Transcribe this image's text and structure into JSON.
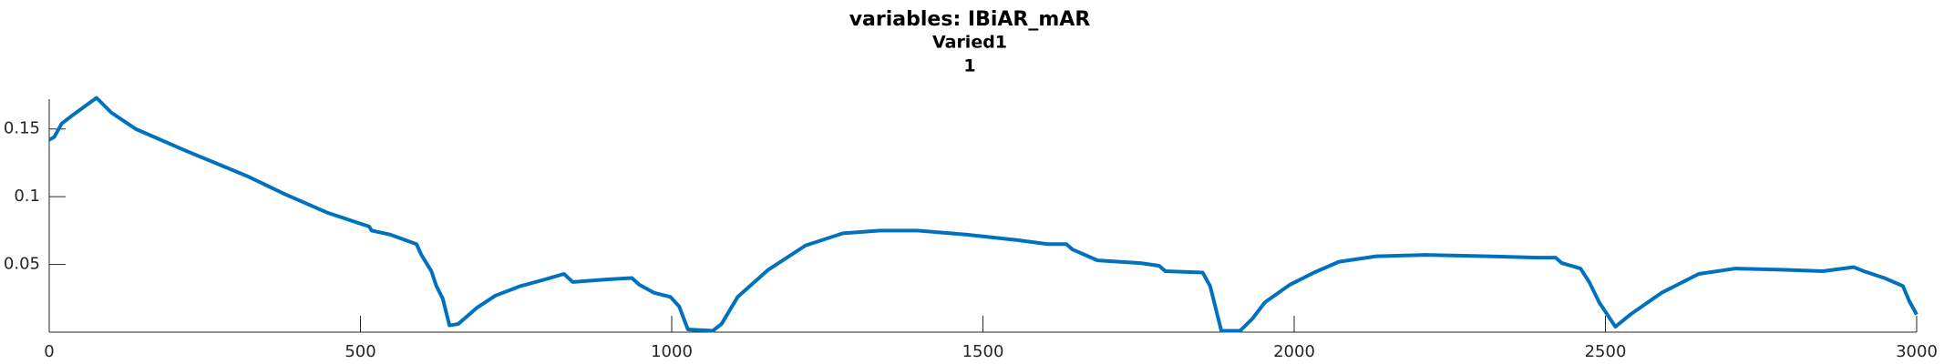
{
  "chart_data": {
    "type": "line",
    "title": "variables: IBiAR_mAR",
    "subtitle": [
      "Varied1",
      "1"
    ],
    "x": [
      0,
      8,
      20,
      40,
      76,
      100,
      139,
      219,
      319,
      378,
      448,
      514,
      518,
      548,
      590,
      598,
      614,
      622,
      632,
      643,
      657,
      687,
      717,
      757,
      797,
      827,
      841,
      897,
      936,
      948,
      972,
      998,
      1012,
      1026,
      1066,
      1080,
      1106,
      1155,
      1215,
      1275,
      1335,
      1395,
      1474,
      1554,
      1604,
      1634,
      1644,
      1684,
      1753,
      1783,
      1793,
      1853,
      1865,
      1883,
      1913,
      1933,
      1953,
      1993,
      2032,
      2072,
      2132,
      2211,
      2311,
      2391,
      2420,
      2430,
      2460,
      2474,
      2490,
      2516,
      2540,
      2590,
      2650,
      2709,
      2789,
      2849,
      2899,
      2915,
      2948,
      2978,
      2988,
      3000
    ],
    "series": [
      {
        "color": "#0072bd",
        "values": [
          0.142,
          0.144,
          0.154,
          0.161,
          0.173,
          0.162,
          0.15,
          0.134,
          0.115,
          0.102,
          0.088,
          0.078,
          0.075,
          0.072,
          0.065,
          0.057,
          0.045,
          0.034,
          0.025,
          0.005,
          0.006,
          0.018,
          0.027,
          0.034,
          0.039,
          0.043,
          0.037,
          0.039,
          0.04,
          0.035,
          0.029,
          0.026,
          0.019,
          0.002,
          0.001,
          0.006,
          0.026,
          0.046,
          0.064,
          0.073,
          0.075,
          0.075,
          0.072,
          0.068,
          0.065,
          0.065,
          0.061,
          0.053,
          0.051,
          0.049,
          0.045,
          0.044,
          0.034,
          0.001,
          0.001,
          0.01,
          0.022,
          0.035,
          0.044,
          0.052,
          0.056,
          0.057,
          0.056,
          0.055,
          0.055,
          0.051,
          0.047,
          0.037,
          0.022,
          0.004,
          0.013,
          0.029,
          0.043,
          0.047,
          0.046,
          0.045,
          0.048,
          0.045,
          0.04,
          0.034,
          0.023,
          0.013
        ]
      }
    ],
    "xlim": [
      0,
      3000
    ],
    "xticks": [
      0,
      500,
      1000,
      1500,
      2000,
      2500,
      3000
    ],
    "ylim": [
      0,
      0.172
    ],
    "yticks": [
      0.05,
      0.1,
      0.15
    ]
  }
}
